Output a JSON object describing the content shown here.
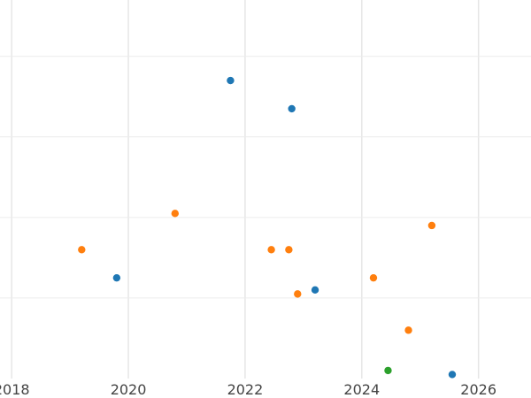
{
  "chart_data": {
    "type": "scatter",
    "title": "",
    "xlabel": "",
    "ylabel": "",
    "x_axis_type": "year",
    "xlim": [
      2017.8,
      2026.9
    ],
    "ylim": [
      0,
      4.7
    ],
    "x_ticks": [
      2018,
      2020,
      2022,
      2024,
      2026
    ],
    "x_tick_labels": [
      "2018",
      "2020",
      "2022",
      "2024",
      "2026"
    ],
    "y_ticks": [
      1,
      2,
      3,
      4
    ],
    "y_tick_labels": [],
    "grid": true,
    "legend": "none",
    "series": [
      {
        "color": "#1f77b4",
        "points": [
          {
            "x": 2019.8,
            "y": 1.25
          },
          {
            "x": 2021.75,
            "y": 3.7
          },
          {
            "x": 2022.8,
            "y": 3.35
          },
          {
            "x": 2023.2,
            "y": 1.1
          },
          {
            "x": 2025.55,
            "y": 0.05
          }
        ]
      },
      {
        "color": "#ff7f0e",
        "points": [
          {
            "x": 2019.2,
            "y": 1.6
          },
          {
            "x": 2020.8,
            "y": 2.05
          },
          {
            "x": 2022.45,
            "y": 1.6
          },
          {
            "x": 2022.75,
            "y": 1.6
          },
          {
            "x": 2022.9,
            "y": 1.05
          },
          {
            "x": 2024.2,
            "y": 1.25
          },
          {
            "x": 2024.8,
            "y": 0.6
          },
          {
            "x": 2025.2,
            "y": 1.9
          }
        ]
      },
      {
        "color": "#2ca02c",
        "points": [
          {
            "x": 2024.45,
            "y": 0.1
          }
        ]
      }
    ]
  }
}
